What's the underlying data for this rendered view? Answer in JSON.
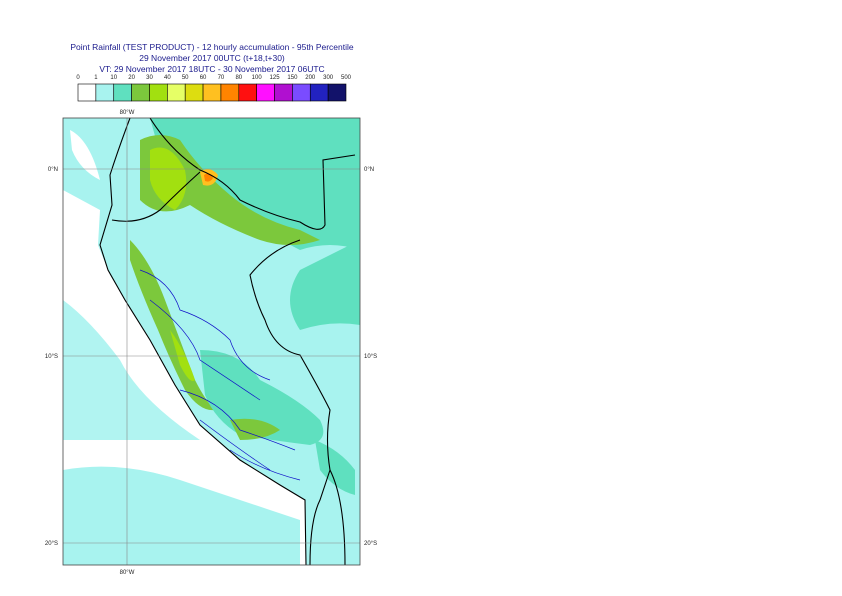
{
  "title": [
    "Point Rainfall (TEST PRODUCT) - 12 hourly accumulation - 95th Percentile",
    "29 November 2017 00UTC (t+18,t+30)",
    "VT: 29 November 2017 18UTC - 30 November 2017 06UTC"
  ],
  "legend": {
    "thresholds": [
      0,
      1,
      10,
      20,
      30,
      40,
      50,
      60,
      70,
      80,
      100,
      125,
      150,
      200,
      300,
      500
    ],
    "colors": [
      "#ffffff",
      "#a8f3ef",
      "#5fe0bf",
      "#7cc83c",
      "#a2e010",
      "#e6ff66",
      "#dddd10",
      "#ffc020",
      "#ff8400",
      "#ff1010",
      "#ff10ff",
      "#b010d0",
      "#7a4cff",
      "#2222c0",
      "#12126a"
    ]
  },
  "map": {
    "lon_labels": [
      "80°W"
    ],
    "lat_labels": [
      "0°N",
      "10°S",
      "20°S"
    ]
  }
}
